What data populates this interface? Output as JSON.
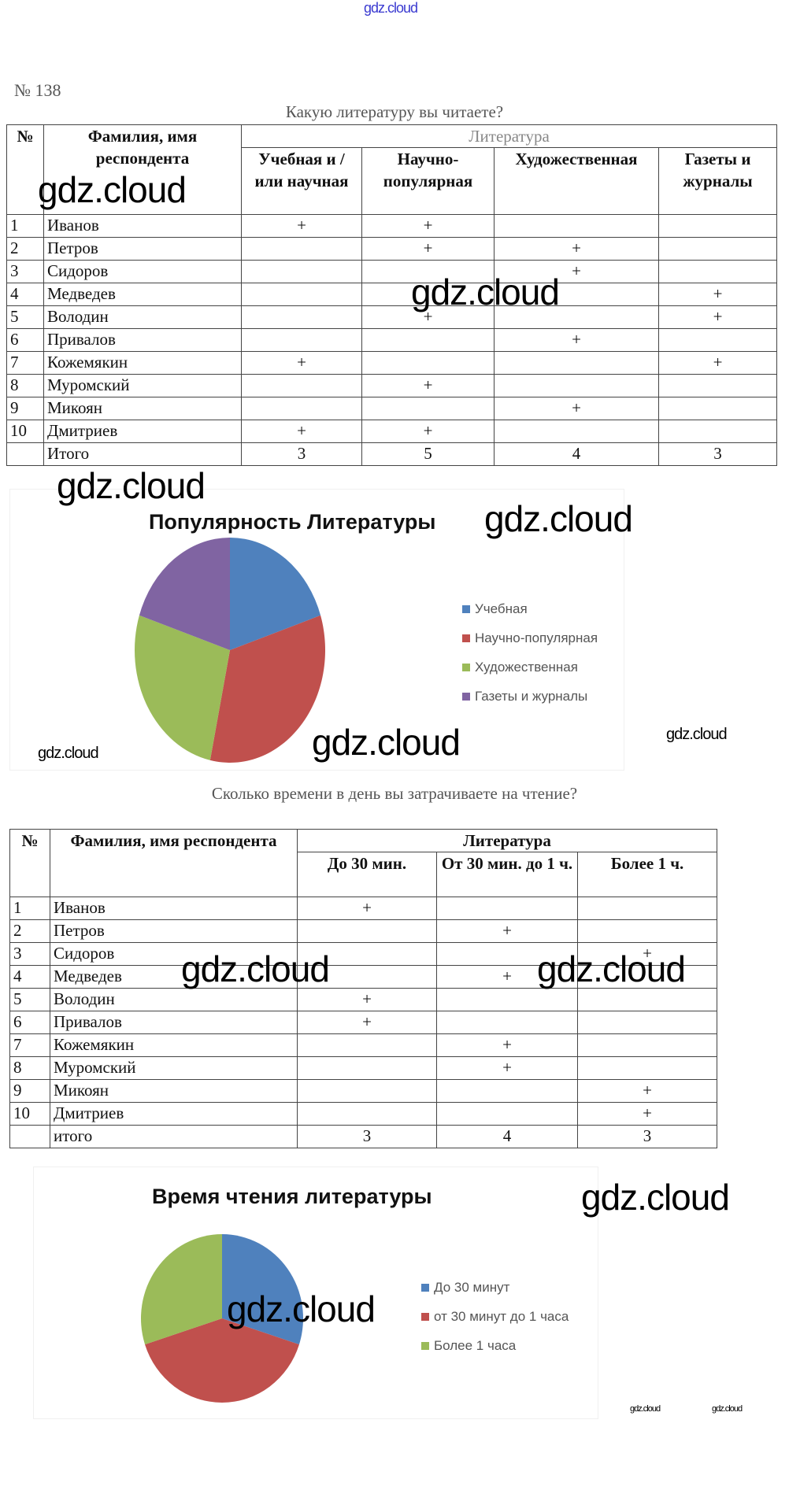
{
  "watermark": "gdz.cloud",
  "task_number": "№ 138",
  "survey1": {
    "question": "Какую литературу вы читаете?",
    "headers": {
      "num": "№",
      "name": "Фамилия, имя респондента",
      "group": "Литература",
      "cols": [
        "Учебная и / или научная",
        "Научно-популярная",
        "Художественная",
        "Газеты и журналы"
      ]
    },
    "rows": [
      [
        "1",
        "Иванов",
        "+",
        "+",
        "",
        ""
      ],
      [
        "2",
        "Петров",
        "",
        "+",
        "+",
        ""
      ],
      [
        "3",
        "Сидоров",
        "",
        "",
        "+",
        ""
      ],
      [
        "4",
        "Медведев",
        "",
        "",
        "",
        "+"
      ],
      [
        "5",
        "Володин",
        "",
        "+",
        "",
        "+"
      ],
      [
        "6",
        "Привалов",
        "",
        "",
        "+",
        ""
      ],
      [
        "7",
        "Кожемякин",
        "+",
        "",
        "",
        "+"
      ],
      [
        "8",
        "Муромский",
        "",
        "+",
        "",
        ""
      ],
      [
        "9",
        "Микоян",
        "",
        "",
        "+",
        ""
      ],
      [
        "10",
        "Дмитриев",
        "+",
        "+",
        "",
        ""
      ]
    ],
    "total": [
      "",
      "Итого",
      "3",
      "5",
      "4",
      "3"
    ]
  },
  "survey2": {
    "question": "Сколько времени в день вы затрачиваете на чтение?",
    "headers": {
      "num": "№",
      "name": "Фамилия, имя респондента",
      "group": "Литература",
      "cols": [
        "До 30 мин.",
        "От 30 мин. до 1 ч.",
        "Более 1 ч."
      ]
    },
    "rows": [
      [
        "1",
        "Иванов",
        "+",
        "",
        ""
      ],
      [
        "2",
        "Петров",
        "",
        "+",
        ""
      ],
      [
        "3",
        "Сидоров",
        "",
        "",
        "+"
      ],
      [
        "4",
        "Медведев",
        "",
        "+",
        ""
      ],
      [
        "5",
        "Володин",
        "+",
        "",
        ""
      ],
      [
        "6",
        "Привалов",
        "+",
        "",
        ""
      ],
      [
        "7",
        "Кожемякин",
        "",
        "+",
        ""
      ],
      [
        "8",
        "Муромский",
        "",
        "+",
        ""
      ],
      [
        "9",
        "Микоян",
        "",
        "",
        "+"
      ],
      [
        "10",
        "Дмитриев",
        "",
        "",
        "+"
      ]
    ],
    "total": [
      "",
      "итого",
      "3",
      "4",
      "3"
    ]
  },
  "chart_data": [
    {
      "type": "pie",
      "title": "Популярность Литературы",
      "categories": [
        "Учебная",
        "Научно-популярная",
        "Художественная",
        "Газеты и журналы"
      ],
      "values": [
        3,
        5,
        4,
        3
      ],
      "colors": [
        "#4f81bd",
        "#c0504d",
        "#9bbb59",
        "#8064a2"
      ],
      "legend": "right"
    },
    {
      "type": "pie",
      "title": "Время чтения литературы",
      "categories": [
        "До 30 минут",
        "от 30 минут до 1 часа",
        "Более 1 часа"
      ],
      "values": [
        3,
        4,
        3
      ],
      "colors": [
        "#4f81bd",
        "#c0504d",
        "#9bbb59"
      ],
      "legend": "right"
    }
  ]
}
